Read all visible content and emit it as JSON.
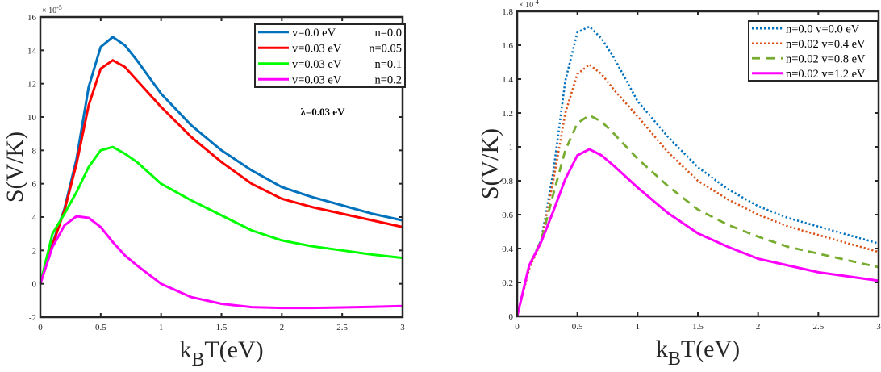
{
  "chart_data": [
    {
      "type": "line",
      "title": "",
      "xlabel_main": "k",
      "xlabel_sub": "B",
      "xlabel_rest": "T(eV)",
      "ylabel": "S(V/K)",
      "y_multiplier": "× 10",
      "y_multiplier_exp": "-5",
      "xlim": [
        0,
        3
      ],
      "ylim": [
        -2,
        16
      ],
      "xticks": [
        0,
        0.5,
        1,
        1.5,
        2,
        2.5,
        3
      ],
      "xtick_labels": [
        "0",
        "0.5",
        "1",
        "1.5",
        "2",
        "2.5",
        "3"
      ],
      "yticks": [
        -2,
        0,
        2,
        4,
        6,
        8,
        10,
        12,
        14,
        16
      ],
      "ytick_labels": [
        "-2",
        "0",
        "2",
        "4",
        "6",
        "8",
        "10",
        "12",
        "14",
        "16"
      ],
      "grid": false,
      "legend_position": "top-right",
      "annotation": "λ=0.03 eV",
      "series": [
        {
          "name": "v=0.0 eV",
          "name_right": "n=0.0",
          "color": "#0072BD",
          "style": "solid",
          "x": [
            0,
            0.1,
            0.2,
            0.3,
            0.4,
            0.5,
            0.6,
            0.7,
            0.8,
            1.0,
            1.25,
            1.5,
            1.75,
            2.0,
            2.25,
            2.5,
            2.75,
            3.0
          ],
          "y": [
            0,
            2.4,
            4.5,
            7.5,
            11.8,
            14.2,
            14.8,
            14.3,
            13.4,
            11.4,
            9.5,
            8.0,
            6.8,
            5.8,
            5.2,
            4.7,
            4.2,
            3.8
          ]
        },
        {
          "name": "v=0.03 eV",
          "name_right": "n=0.05",
          "color": "#FF0000",
          "style": "solid",
          "x": [
            0,
            0.1,
            0.2,
            0.3,
            0.4,
            0.5,
            0.6,
            0.7,
            0.8,
            1.0,
            1.25,
            1.5,
            1.75,
            2.0,
            2.25,
            2.5,
            2.75,
            3.0
          ],
          "y": [
            0,
            2.3,
            4.4,
            7.2,
            10.7,
            12.9,
            13.4,
            13.0,
            12.2,
            10.6,
            8.8,
            7.3,
            6.0,
            5.1,
            4.6,
            4.2,
            3.8,
            3.4
          ]
        },
        {
          "name": "v=0.03 eV",
          "name_right": "n=0.1",
          "color": "#00FF00",
          "style": "solid",
          "x": [
            0,
            0.1,
            0.2,
            0.3,
            0.4,
            0.5,
            0.6,
            0.7,
            0.8,
            1.0,
            1.25,
            1.5,
            1.75,
            2.0,
            2.25,
            2.5,
            2.75,
            3.0
          ],
          "y": [
            0,
            3.0,
            4.2,
            5.5,
            7.0,
            8.0,
            8.2,
            7.8,
            7.3,
            6.0,
            5.0,
            4.1,
            3.2,
            2.6,
            2.25,
            2.0,
            1.75,
            1.55
          ]
        },
        {
          "name": "v=0.03 eV",
          "name_right": "n=0.2",
          "color": "#FF00FF",
          "style": "solid",
          "x": [
            0,
            0.1,
            0.2,
            0.3,
            0.4,
            0.5,
            0.6,
            0.7,
            0.8,
            1.0,
            1.25,
            1.5,
            1.75,
            2.0,
            2.25,
            2.5,
            2.75,
            3.0
          ],
          "y": [
            0,
            2.2,
            3.5,
            4.05,
            3.95,
            3.4,
            2.5,
            1.7,
            1.1,
            0.0,
            -0.8,
            -1.2,
            -1.4,
            -1.45,
            -1.45,
            -1.42,
            -1.38,
            -1.33
          ]
        }
      ]
    },
    {
      "type": "line",
      "title": "",
      "xlabel_main": "k",
      "xlabel_sub": "B",
      "xlabel_rest": "T(eV)",
      "ylabel": "S(V/K)",
      "y_multiplier": "× 10",
      "y_multiplier_exp": "-4",
      "xlim": [
        0,
        3
      ],
      "ylim": [
        0,
        1.8
      ],
      "xticks": [
        0,
        0.5,
        1,
        1.5,
        2,
        2.5,
        3
      ],
      "xtick_labels": [
        "0",
        "0.5",
        "1",
        "1.5",
        "2",
        "2.5",
        "3"
      ],
      "yticks": [
        0,
        0.2,
        0.4,
        0.6,
        0.8,
        1.0,
        1.2,
        1.4,
        1.6,
        1.8
      ],
      "ytick_labels": [
        "0",
        "0.2",
        "0.4",
        "0.6",
        "0.8",
        "1",
        "1.2",
        "1.4",
        "1.6",
        "1.8"
      ],
      "grid": false,
      "legend_position": "top-right",
      "series": [
        {
          "name": "n=0.0 v=0.0 eV",
          "color": "#0072BD",
          "style": "dotted",
          "x": [
            0,
            0.1,
            0.2,
            0.3,
            0.4,
            0.5,
            0.6,
            0.7,
            0.8,
            1.0,
            1.25,
            1.5,
            1.75,
            2.0,
            2.25,
            2.5,
            2.75,
            3.0
          ],
          "y": [
            0,
            0.3,
            0.45,
            0.85,
            1.39,
            1.676,
            1.71,
            1.64,
            1.53,
            1.27,
            1.06,
            0.88,
            0.75,
            0.65,
            0.58,
            0.53,
            0.48,
            0.43
          ]
        },
        {
          "name": "n=0.02 v=0.4 eV",
          "color": "#D95319",
          "style": "dotted",
          "x": [
            0,
            0.1,
            0.2,
            0.3,
            0.4,
            0.5,
            0.6,
            0.7,
            0.8,
            1.0,
            1.25,
            1.5,
            1.75,
            2.0,
            2.25,
            2.5,
            2.75,
            3.0
          ],
          "y": [
            0,
            0.28,
            0.44,
            0.8,
            1.2,
            1.43,
            1.486,
            1.43,
            1.34,
            1.18,
            0.97,
            0.8,
            0.69,
            0.6,
            0.53,
            0.48,
            0.43,
            0.38
          ]
        },
        {
          "name": "n=0.02 v=0.8 eV",
          "color": "#77AC30",
          "style": "dashed",
          "x": [
            0,
            0.1,
            0.2,
            0.3,
            0.4,
            0.5,
            0.6,
            0.7,
            0.8,
            1.0,
            1.25,
            1.5,
            1.75,
            2.0,
            2.25,
            2.5,
            2.75,
            3.0
          ],
          "y": [
            0,
            0.3,
            0.45,
            0.72,
            0.98,
            1.14,
            1.186,
            1.15,
            1.08,
            0.93,
            0.77,
            0.63,
            0.54,
            0.47,
            0.41,
            0.37,
            0.33,
            0.29
          ]
        },
        {
          "name": "n=0.02 v=1.2 eV",
          "color": "#FF00FF",
          "style": "solid",
          "x": [
            0,
            0.1,
            0.2,
            0.3,
            0.4,
            0.5,
            0.6,
            0.7,
            0.8,
            1.0,
            1.25,
            1.5,
            1.75,
            2.0,
            2.25,
            2.5,
            2.75,
            3.0
          ],
          "y": [
            0,
            0.3,
            0.44,
            0.62,
            0.81,
            0.95,
            0.986,
            0.95,
            0.89,
            0.76,
            0.61,
            0.49,
            0.41,
            0.34,
            0.3,
            0.26,
            0.235,
            0.21
          ]
        }
      ]
    }
  ]
}
